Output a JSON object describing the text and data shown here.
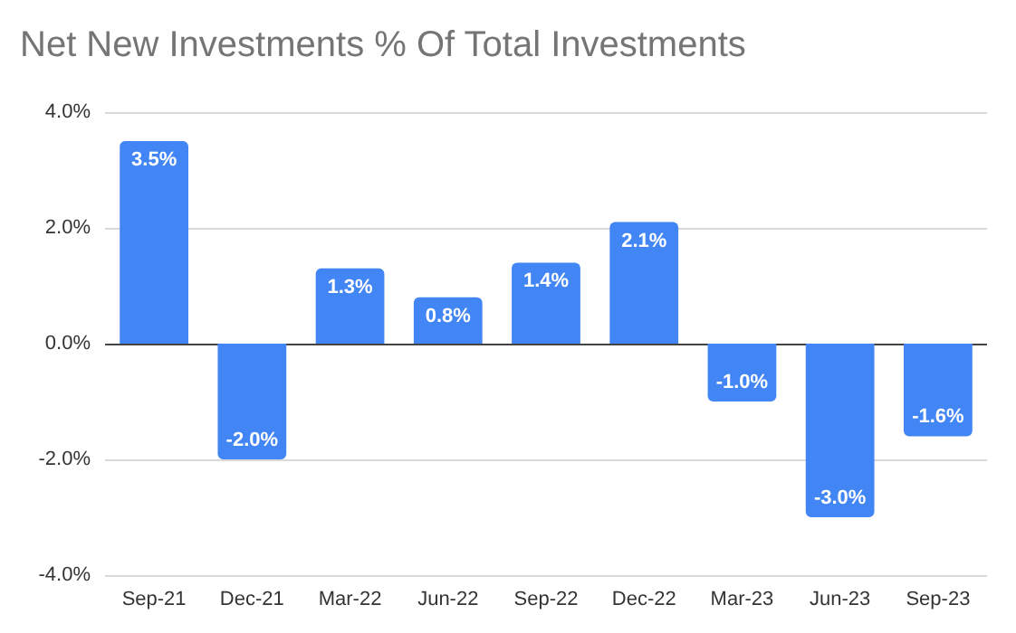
{
  "chart_data": {
    "type": "bar",
    "title": "Net New Investments % Of Total Investments",
    "categories": [
      "Sep-21",
      "Dec-21",
      "Mar-22",
      "Jun-22",
      "Sep-22",
      "Dec-22",
      "Mar-23",
      "Jun-23",
      "Sep-23"
    ],
    "values": [
      3.5,
      -2.0,
      1.3,
      0.8,
      1.4,
      2.1,
      -1.0,
      -3.0,
      -1.6
    ],
    "value_labels": [
      "3.5%",
      "-2.0%",
      "1.3%",
      "0.8%",
      "1.4%",
      "2.1%",
      "-1.0%",
      "-3.0%",
      "-1.6%"
    ],
    "color": "#4285f4",
    "ylim": [
      -4,
      4
    ],
    "yticks": [
      {
        "value": -4,
        "label": "-4.0%"
      },
      {
        "value": -2,
        "label": "-2.0%"
      },
      {
        "value": 0,
        "label": "0.0%"
      },
      {
        "value": 2,
        "label": "2.0%"
      },
      {
        "value": 4,
        "label": "4.0%"
      }
    ],
    "grid": "y"
  }
}
